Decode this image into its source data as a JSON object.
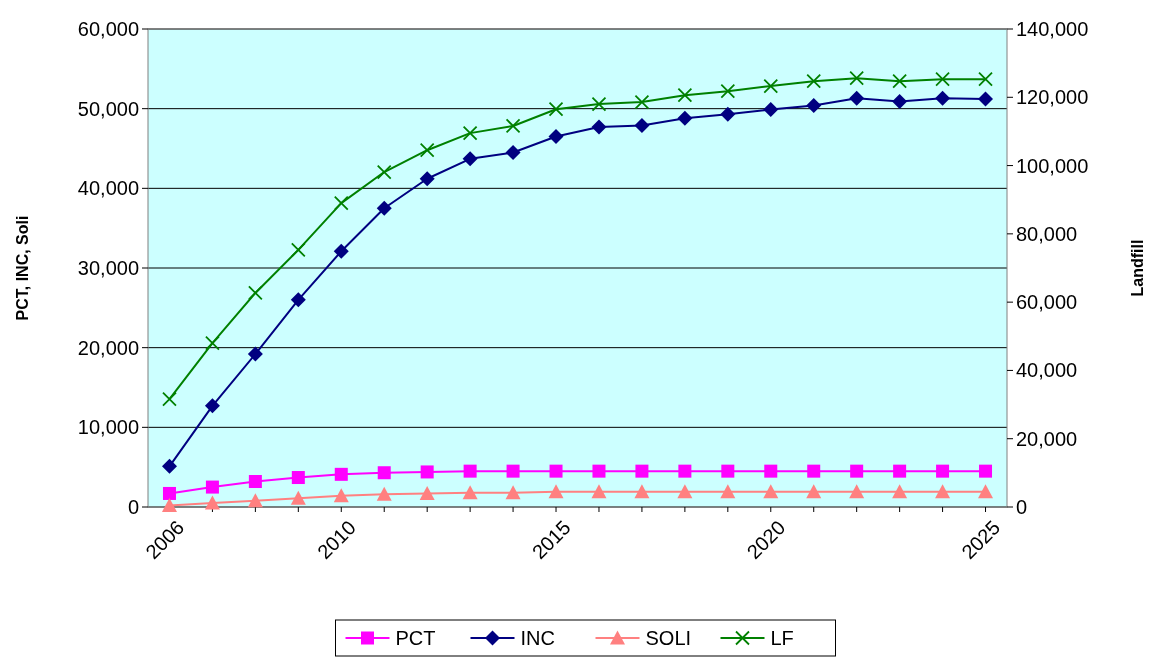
{
  "chart_data": {
    "type": "line",
    "ylabel": "PCT, INC, Soli",
    "y2label": "Landfill",
    "categories": [
      "2006",
      null,
      null,
      null,
      "2010",
      null,
      null,
      null,
      null,
      "2015",
      null,
      null,
      null,
      null,
      "2020",
      null,
      null,
      null,
      null,
      "2025"
    ],
    "series": [
      {
        "name": "PCT",
        "color": "#ff00ff",
        "marker": "square",
        "values": [
          1700,
          2500,
          3200,
          3700,
          4100,
          4300,
          4400,
          4500,
          4500,
          4500,
          4500,
          4500,
          4500,
          4500,
          4500,
          4500,
          4500,
          4500,
          4500,
          4500
        ]
      },
      {
        "name": "INC",
        "color": "#000080",
        "marker": "diamond",
        "values": [
          5100,
          12700,
          19200,
          26000,
          32100,
          37500,
          41200,
          43700,
          44500,
          46500,
          47700,
          47900,
          48800,
          49300,
          49900,
          50400,
          51300,
          50900,
          51300,
          51200
        ]
      },
      {
        "name": "SOLI",
        "color": "#ff8080",
        "marker": "triangle",
        "values": [
          200,
          500,
          800,
          1100,
          1400,
          1600,
          1700,
          1800,
          1800,
          1900,
          1900,
          1900,
          1900,
          1900,
          1900,
          1900,
          1900,
          1900,
          1900,
          1900
        ]
      },
      {
        "name": "LF",
        "color": "#008000",
        "marker": "cross",
        "axis": "y2",
        "values": [
          31600,
          48000,
          62700,
          75300,
          89000,
          98100,
          104500,
          109500,
          111600,
          116500,
          118000,
          118600,
          120600,
          121800,
          123300,
          124700,
          125600,
          124700,
          125300,
          125300
        ]
      }
    ],
    "ylim": [
      0,
      60000
    ],
    "yticks": [
      {
        "value": 0,
        "label": "0"
      },
      {
        "value": 10000,
        "label": "10,000"
      },
      {
        "value": 20000,
        "label": "20,000"
      },
      {
        "value": 30000,
        "label": "30,000"
      },
      {
        "value": 40000,
        "label": "40,000"
      },
      {
        "value": 50000,
        "label": "50,000"
      },
      {
        "value": 60000,
        "label": "60,000"
      }
    ],
    "y2lim": [
      0,
      140000
    ],
    "y2ticks": [
      {
        "value": 0,
        "label": "0"
      },
      {
        "value": 20000,
        "label": "20,000"
      },
      {
        "value": 40000,
        "label": "40,000"
      },
      {
        "value": 60000,
        "label": "60,000"
      },
      {
        "value": 80000,
        "label": "80,000"
      },
      {
        "value": 100000,
        "label": "100,000"
      },
      {
        "value": 120000,
        "label": "120,000"
      },
      {
        "value": 140000,
        "label": "140,000"
      }
    ],
    "grid": "y",
    "legend": "bottom",
    "line_style": "solid"
  }
}
